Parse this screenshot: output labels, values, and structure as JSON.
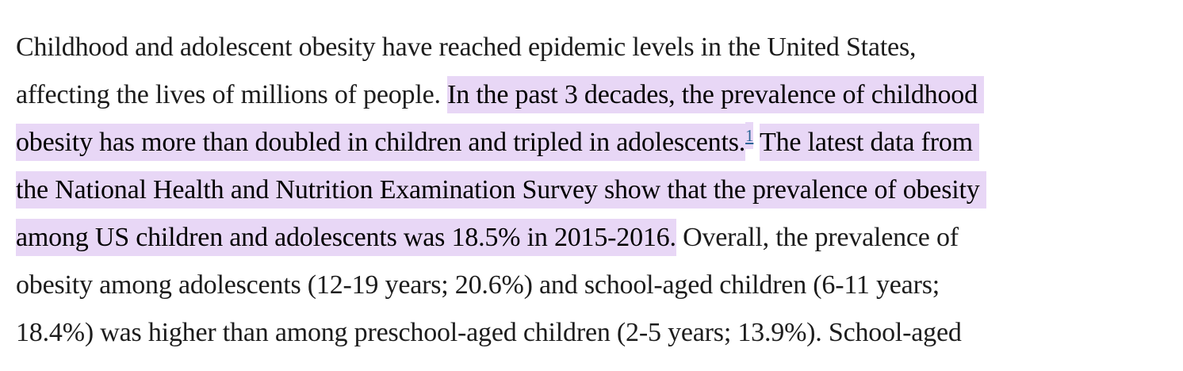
{
  "page": {
    "background": "#ffffff"
  },
  "colors": {
    "text": "#1c1c1c",
    "highlight": "#e8d7f6",
    "link": "#2a6496"
  },
  "reference_link": {
    "label": "1"
  },
  "paragraph": {
    "full_text": "Childhood and adolescent obesity have reached epidemic levels in the United States, affecting the lives of millions of people. In the past 3 decades, the prevalence of childhood obesity has more than doubled in children and tripled in adolescents.1 The latest data from the National Health and Nutrition Examination Survey show that the prevalence of obesity among US children and adolescents was 18.5% in 2015-2016. Overall, the prevalence of obesity among adolescents (12-19 years; 20.6%) and school-aged children (6-11 years; 18.4%) was higher than among preschool-aged children (2-5 years; 13.9%). School-aged",
    "lines": [
      {
        "segments": [
          {
            "text": "Childhood and adolescent obesity have reached epidemic levels in the United States,",
            "highlight": false
          }
        ]
      },
      {
        "segments": [
          {
            "text": "affecting the lives of millions of people. ",
            "highlight": false
          },
          {
            "text": "In the past 3 decades, the prevalence of childhood ",
            "highlight": true
          }
        ]
      },
      {
        "segments": [
          {
            "text": "obesity has more than doubled in children and tripled in adolescents.",
            "highlight": true
          },
          {
            "text": "1",
            "highlight": true,
            "sup_link": true
          },
          {
            "text": " ",
            "highlight": false
          },
          {
            "text": "The latest data from ",
            "highlight": true
          }
        ]
      },
      {
        "segments": [
          {
            "text": "the National Health and Nutrition Examination Survey show that the prevalence of obesity ",
            "highlight": true
          }
        ]
      },
      {
        "segments": [
          {
            "text": "among US children and adolescents was 18.5% in 2015-2016.",
            "highlight": true
          },
          {
            "text": " Overall, the prevalence of",
            "highlight": false
          }
        ]
      },
      {
        "segments": [
          {
            "text": "obesity among adolescents (12-19 years; 20.6%) and school-aged children (6-11 years;",
            "highlight": false
          }
        ]
      },
      {
        "segments": [
          {
            "text": "18.4%) was higher than among preschool-aged children (2-5 years; 13.9%). School-aged",
            "highlight": false
          }
        ]
      }
    ]
  }
}
